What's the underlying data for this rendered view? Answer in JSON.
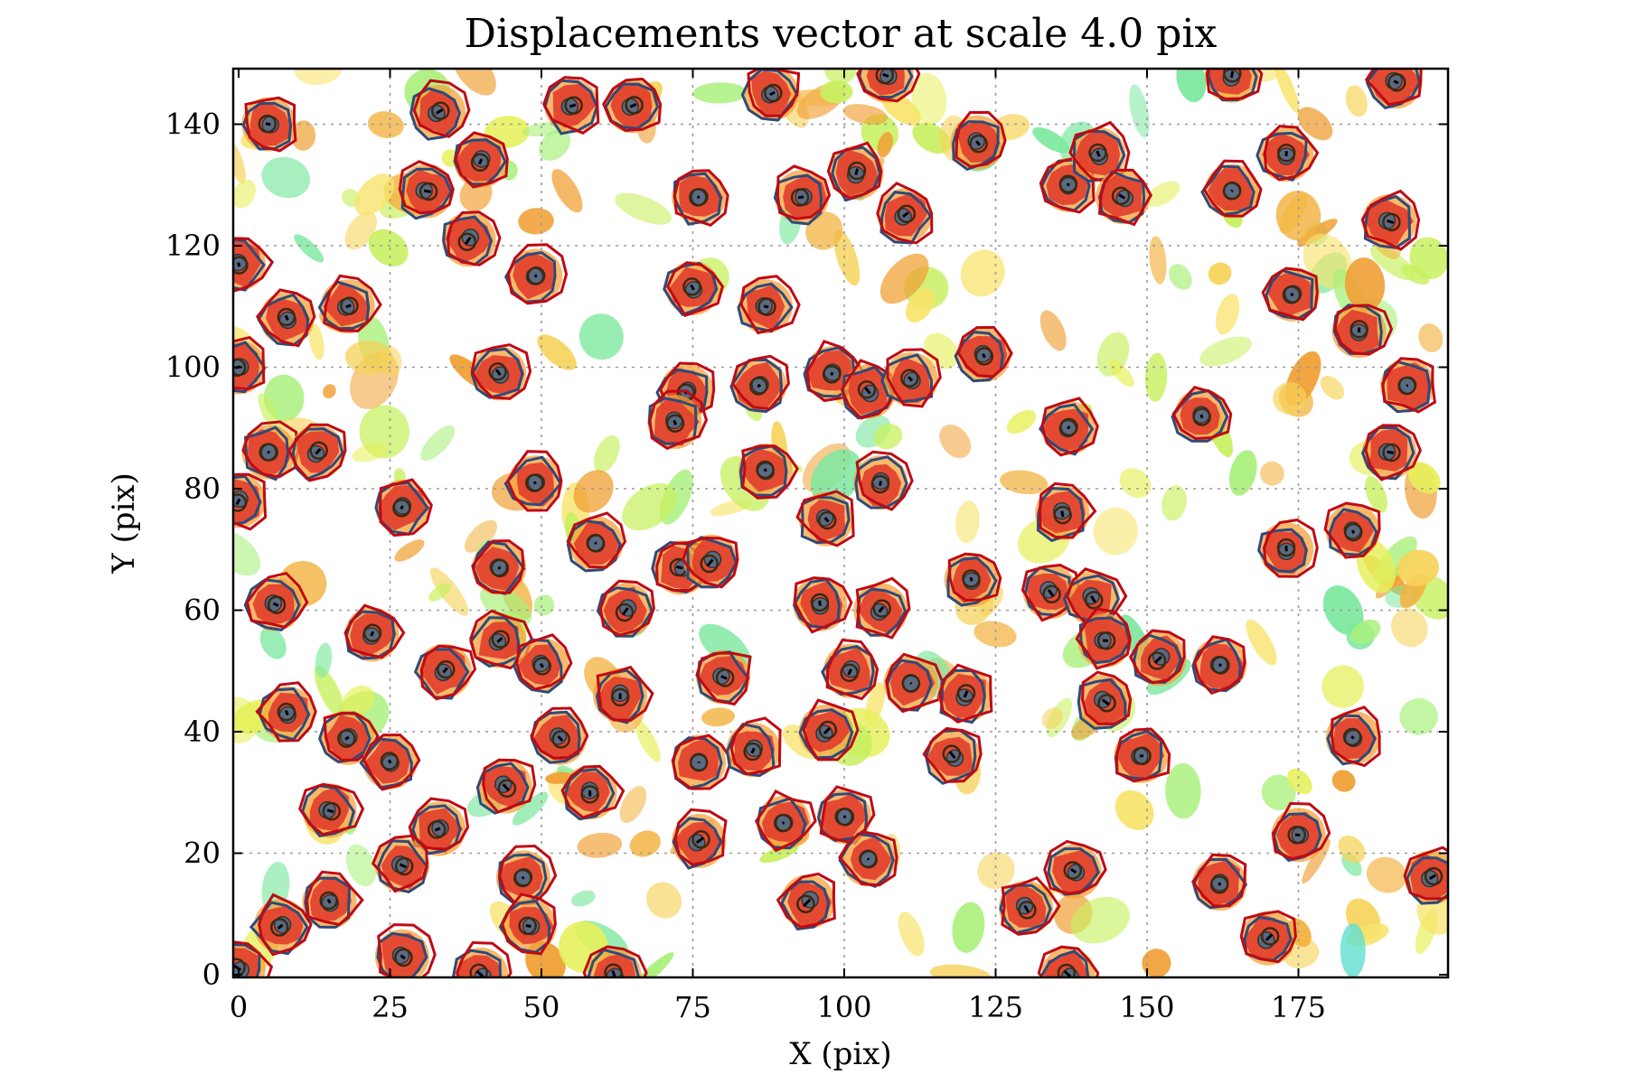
{
  "chart_data": {
    "type": "scatter",
    "title": "Displacements vector at scale 4.0 pix",
    "xlabel": "X (pix)",
    "ylabel": "Y (pix)",
    "xlim": [
      0,
      200
    ],
    "ylim": [
      0,
      150
    ],
    "xticks": [
      0,
      25,
      50,
      75,
      100,
      125,
      150,
      175
    ],
    "yticks": [
      0,
      20,
      40,
      60,
      80,
      100,
      120,
      140
    ],
    "grid": true,
    "colors": {
      "reference_marker": "#5a6a82",
      "displaced_marker": "#e88b2a",
      "reference_contour": "#2e4a7a",
      "displaced_contour": "#c00a14",
      "background_blob_warm": "#f0b040",
      "background_blob_cool": "#8ee870",
      "vector": "#000000"
    },
    "series": [
      {
        "name": "",
        "points": [
          {
            "x": 5,
            "y": 140
          },
          {
            "x": 33,
            "y": 142
          },
          {
            "x": 55,
            "y": 143
          },
          {
            "x": 65,
            "y": 143
          },
          {
            "x": 88,
            "y": 145
          },
          {
            "x": 107,
            "y": 148
          },
          {
            "x": 164,
            "y": 148
          },
          {
            "x": 191,
            "y": 147
          },
          {
            "x": 122,
            "y": 137
          },
          {
            "x": 40,
            "y": 134
          },
          {
            "x": 31,
            "y": 129
          },
          {
            "x": 76,
            "y": 128
          },
          {
            "x": 93,
            "y": 128
          },
          {
            "x": 102,
            "y": 132
          },
          {
            "x": 137,
            "y": 130
          },
          {
            "x": 142,
            "y": 135
          },
          {
            "x": 146,
            "y": 128
          },
          {
            "x": 164,
            "y": 129
          },
          {
            "x": 173,
            "y": 135
          },
          {
            "x": 190,
            "y": 124
          },
          {
            "x": 110,
            "y": 125
          },
          {
            "x": 38,
            "y": 121
          },
          {
            "x": 0,
            "y": 117
          },
          {
            "x": 49,
            "y": 115
          },
          {
            "x": 75,
            "y": 113
          },
          {
            "x": 8,
            "y": 108
          },
          {
            "x": 18,
            "y": 110
          },
          {
            "x": 87,
            "y": 110
          },
          {
            "x": 174,
            "y": 112
          },
          {
            "x": 185,
            "y": 106
          },
          {
            "x": 43,
            "y": 99
          },
          {
            "x": 86,
            "y": 97
          },
          {
            "x": 98,
            "y": 99
          },
          {
            "x": 104,
            "y": 96
          },
          {
            "x": 111,
            "y": 98
          },
          {
            "x": 74,
            "y": 96
          },
          {
            "x": 72,
            "y": 91
          },
          {
            "x": 123,
            "y": 102
          },
          {
            "x": 159,
            "y": 92
          },
          {
            "x": 193,
            "y": 97
          },
          {
            "x": 0,
            "y": 100
          },
          {
            "x": 5,
            "y": 86
          },
          {
            "x": 13,
            "y": 86
          },
          {
            "x": 49,
            "y": 81
          },
          {
            "x": 87,
            "y": 83
          },
          {
            "x": 106,
            "y": 81
          },
          {
            "x": 137,
            "y": 90
          },
          {
            "x": 190,
            "y": 86
          },
          {
            "x": 0,
            "y": 78
          },
          {
            "x": 27,
            "y": 77
          },
          {
            "x": 59,
            "y": 71
          },
          {
            "x": 97,
            "y": 75
          },
          {
            "x": 136,
            "y": 76
          },
          {
            "x": 173,
            "y": 70
          },
          {
            "x": 184,
            "y": 73
          },
          {
            "x": 43,
            "y": 67
          },
          {
            "x": 73,
            "y": 67
          },
          {
            "x": 78,
            "y": 68
          },
          {
            "x": 121,
            "y": 65
          },
          {
            "x": 6,
            "y": 61
          },
          {
            "x": 64,
            "y": 60
          },
          {
            "x": 96,
            "y": 61
          },
          {
            "x": 106,
            "y": 60
          },
          {
            "x": 134,
            "y": 63
          },
          {
            "x": 141,
            "y": 62
          },
          {
            "x": 22,
            "y": 56
          },
          {
            "x": 43,
            "y": 55
          },
          {
            "x": 143,
            "y": 55
          },
          {
            "x": 34,
            "y": 50
          },
          {
            "x": 50,
            "y": 51
          },
          {
            "x": 80,
            "y": 49
          },
          {
            "x": 101,
            "y": 50
          },
          {
            "x": 111,
            "y": 48
          },
          {
            "x": 120,
            "y": 46
          },
          {
            "x": 152,
            "y": 52
          },
          {
            "x": 162,
            "y": 51
          },
          {
            "x": 8,
            "y": 43
          },
          {
            "x": 63,
            "y": 46
          },
          {
            "x": 143,
            "y": 45
          },
          {
            "x": 18,
            "y": 39
          },
          {
            "x": 53,
            "y": 39
          },
          {
            "x": 97,
            "y": 40
          },
          {
            "x": 184,
            "y": 39
          },
          {
            "x": 25,
            "y": 35
          },
          {
            "x": 44,
            "y": 31
          },
          {
            "x": 76,
            "y": 35
          },
          {
            "x": 85,
            "y": 37
          },
          {
            "x": 118,
            "y": 36
          },
          {
            "x": 149,
            "y": 36
          },
          {
            "x": 15,
            "y": 27
          },
          {
            "x": 58,
            "y": 30
          },
          {
            "x": 33,
            "y": 24
          },
          {
            "x": 90,
            "y": 25
          },
          {
            "x": 100,
            "y": 26
          },
          {
            "x": 76,
            "y": 22
          },
          {
            "x": 104,
            "y": 19
          },
          {
            "x": 27,
            "y": 18
          },
          {
            "x": 175,
            "y": 23
          },
          {
            "x": 47,
            "y": 16
          },
          {
            "x": 138,
            "y": 17
          },
          {
            "x": 162,
            "y": 15
          },
          {
            "x": 197,
            "y": 16
          },
          {
            "x": 15,
            "y": 12
          },
          {
            "x": 94,
            "y": 12
          },
          {
            "x": 130,
            "y": 11
          },
          {
            "x": 48,
            "y": 8
          },
          {
            "x": 7,
            "y": 8
          },
          {
            "x": 170,
            "y": 6
          },
          {
            "x": 27,
            "y": 3
          },
          {
            "x": 0,
            "y": 1
          },
          {
            "x": 40,
            "y": 0
          },
          {
            "x": 62,
            "y": 0
          },
          {
            "x": 137,
            "y": 0
          }
        ]
      }
    ]
  }
}
